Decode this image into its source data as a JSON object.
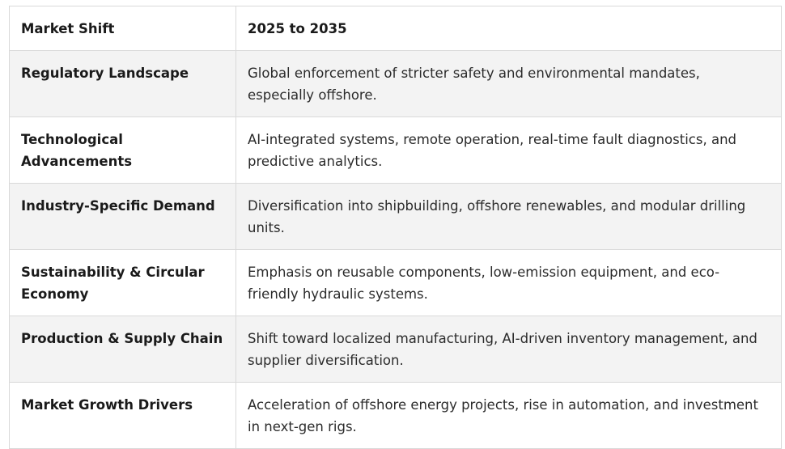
{
  "table": {
    "header": {
      "col1": "Market Shift",
      "col2": "2025 to 2035"
    },
    "rows": [
      {
        "label": "Regulatory Landscape",
        "text": "Global enforcement of stricter safety and environmental mandates, especially offshore."
      },
      {
        "label": "Technological Advancements",
        "text": "AI-integrated systems, remote operation, real-time fault diagnostics, and predictive analytics."
      },
      {
        "label": "Industry-Specific Demand",
        "text": "Diversification into shipbuilding, offshore renewables, and modular drilling units."
      },
      {
        "label": "Sustainability & Circular Economy",
        "text": "Emphasis on reusable components, low-emission equipment, and eco-friendly hydraulic systems."
      },
      {
        "label": "Production & Supply Chain",
        "text": "Shift toward localized manufacturing, AI-driven inventory management, and supplier diversification."
      },
      {
        "label": "Market Growth Drivers",
        "text": "Acceleration of offshore energy projects, rise in automation, and investment in next-gen rigs."
      }
    ]
  },
  "colors": {
    "border": "#d9d9d9",
    "shade": "#f3f3f3",
    "text": "#1f1f1f"
  }
}
